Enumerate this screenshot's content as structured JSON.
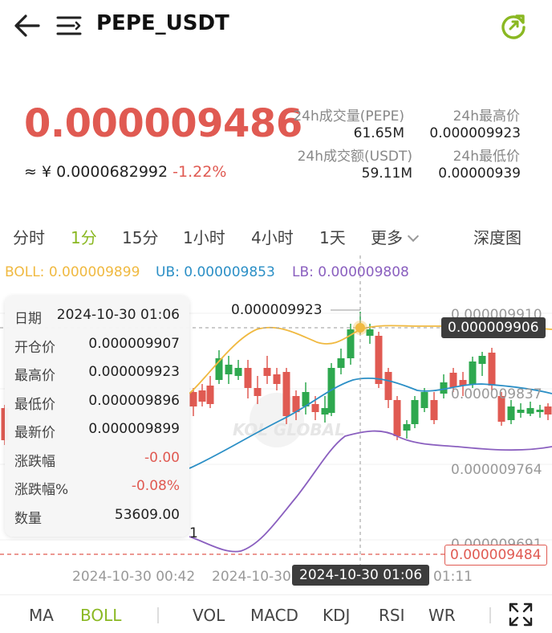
{
  "header": {
    "title": "PEPE_USDT"
  },
  "ticker": {
    "price": "0.000009486",
    "cny_prefix": "≈ ¥ ",
    "cny_value": "0.0000682992",
    "change_pct": "-1.22%",
    "stats": {
      "vol_label": "24h成交量(PEPE)",
      "vol_value": "61.65M",
      "high_label": "24h最高价",
      "high_value": "0.000009923",
      "amount_label": "24h成交额(USDT)",
      "amount_value": "59.11M",
      "low_label": "24h最低价",
      "low_value": "0.00000939"
    }
  },
  "tabs": {
    "items": [
      "分时",
      "1分",
      "15分",
      "1小时",
      "4小时",
      "1天",
      "更多"
    ],
    "active": "1分",
    "depth": "深度图"
  },
  "indicators": {
    "boll": "BOLL: 0.000009899",
    "ub": "UB: 0.000009853",
    "lb": "LB: 0.000009808"
  },
  "tooltip": {
    "rows": [
      {
        "k": "日期",
        "v": "2024-10-30 01:06"
      },
      {
        "k": "开仓价",
        "v": "0.000009907"
      },
      {
        "k": "最高价",
        "v": "0.000009923"
      },
      {
        "k": "最低价",
        "v": "0.000009896"
      },
      {
        "k": "最新价",
        "v": "0.000009899"
      },
      {
        "k": "涨跌幅",
        "v": "-0.00"
      },
      {
        "k": "涨跌幅%",
        "v": "-0.08%"
      },
      {
        "k": "数量",
        "v": "53609.00"
      }
    ]
  },
  "chart": {
    "high_marker": "0.000009923",
    "crosshair_price": "0.000009906",
    "axis_top": "0.000009910",
    "axis_mid": "0.000009837",
    "axis_low": "0.000009764",
    "axis_bottom": "0.000009691",
    "current_price_tag": "0.000009484",
    "left_digit": "1",
    "watermark": "KOL GLOBAL"
  },
  "time_axis": {
    "t1": "2024-10-30 00:42",
    "t2": "2024-10-30",
    "t3": "01:11",
    "crosshair_time": "2024-10-30 01:06"
  },
  "bottom_bar": {
    "items": [
      "MA",
      "BOLL",
      "VOL",
      "MACD",
      "KDJ",
      "RSI",
      "WR"
    ],
    "active": "BOLL"
  },
  "colors": {
    "up": "#2ea84f",
    "down": "#e05a52",
    "accent": "#8ab822",
    "boll": "#f0b940",
    "ub": "#2b8fc6",
    "lb": "#8a5fbf"
  },
  "icons": [
    "back-arrow-icon",
    "menu-icon",
    "refresh-icon",
    "fullscreen-icon"
  ]
}
